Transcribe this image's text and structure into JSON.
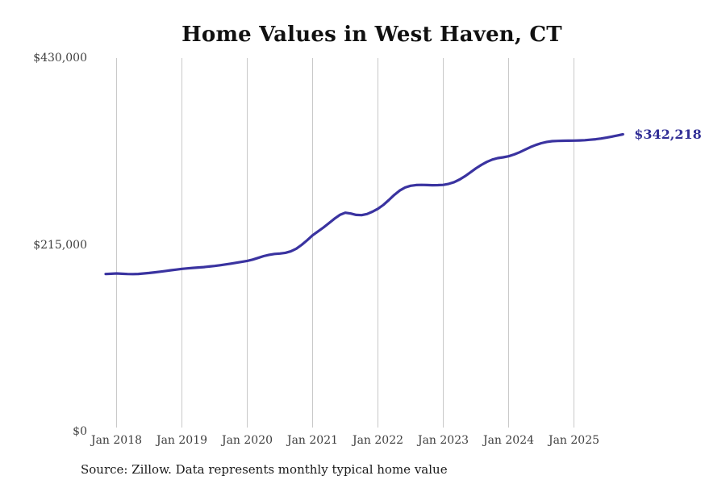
{
  "page": {
    "title": "Home Values in West Haven, CT",
    "source_note": "Source: Zillow. Data represents monthly typical home value"
  },
  "colors": {
    "background": "#ffffff",
    "gridline": "#c9c9c9",
    "axis_text": "#3f3f3f",
    "title_text": "#111111",
    "line": "#3a33a0",
    "value_label": "#312e96"
  },
  "chart_data": {
    "type": "line",
    "title": "Home Values in West Haven, CT",
    "xlabel": "",
    "ylabel": "",
    "grid": "vertical-only",
    "legend": "none",
    "ylim": [
      0,
      430000
    ],
    "y_ticks": [
      {
        "value": 0,
        "label": "$0"
      },
      {
        "value": 215000,
        "label": "$215,000"
      },
      {
        "value": 430000,
        "label": "$430,000"
      }
    ],
    "x_tick_labels": [
      "Jan 2018",
      "Jan 2019",
      "Jan 2020",
      "Jan 2021",
      "Jan 2022",
      "Jan 2023",
      "Jan 2024",
      "Jan 2025"
    ],
    "x_tick_start_index": 2,
    "x_tick_interval": 12,
    "start_month": "2017-11",
    "end_month": "2025-10",
    "end_label": {
      "text": "$342,218",
      "value": 342218
    },
    "series": [
      {
        "name": "Monthly typical home value",
        "values": [
          181400,
          181700,
          182000,
          181700,
          181400,
          181300,
          181500,
          182000,
          182600,
          183300,
          184100,
          184900,
          185700,
          186500,
          187300,
          187900,
          188400,
          188900,
          189400,
          190000,
          190700,
          191500,
          192400,
          193400,
          194400,
          195400,
          196500,
          198000,
          200000,
          202000,
          203500,
          204500,
          205000,
          205800,
          207500,
          210500,
          215000,
          220300,
          226000,
          230500,
          235000,
          240000,
          245000,
          249500,
          252000,
          251000,
          249500,
          249200,
          250500,
          253200,
          256500,
          261000,
          266500,
          272500,
          277500,
          281000,
          283000,
          283800,
          284000,
          283800,
          283600,
          283700,
          284000,
          285200,
          287200,
          290200,
          294000,
          298500,
          303000,
          307000,
          310500,
          313200,
          314800,
          315800,
          317000,
          319000,
          321500,
          324500,
          327500,
          330000,
          332000,
          333500,
          334300,
          334600,
          334800,
          334900,
          335000,
          335200,
          335500,
          336000,
          336600,
          337400,
          338400,
          339600,
          340900,
          342218
        ]
      }
    ]
  }
}
